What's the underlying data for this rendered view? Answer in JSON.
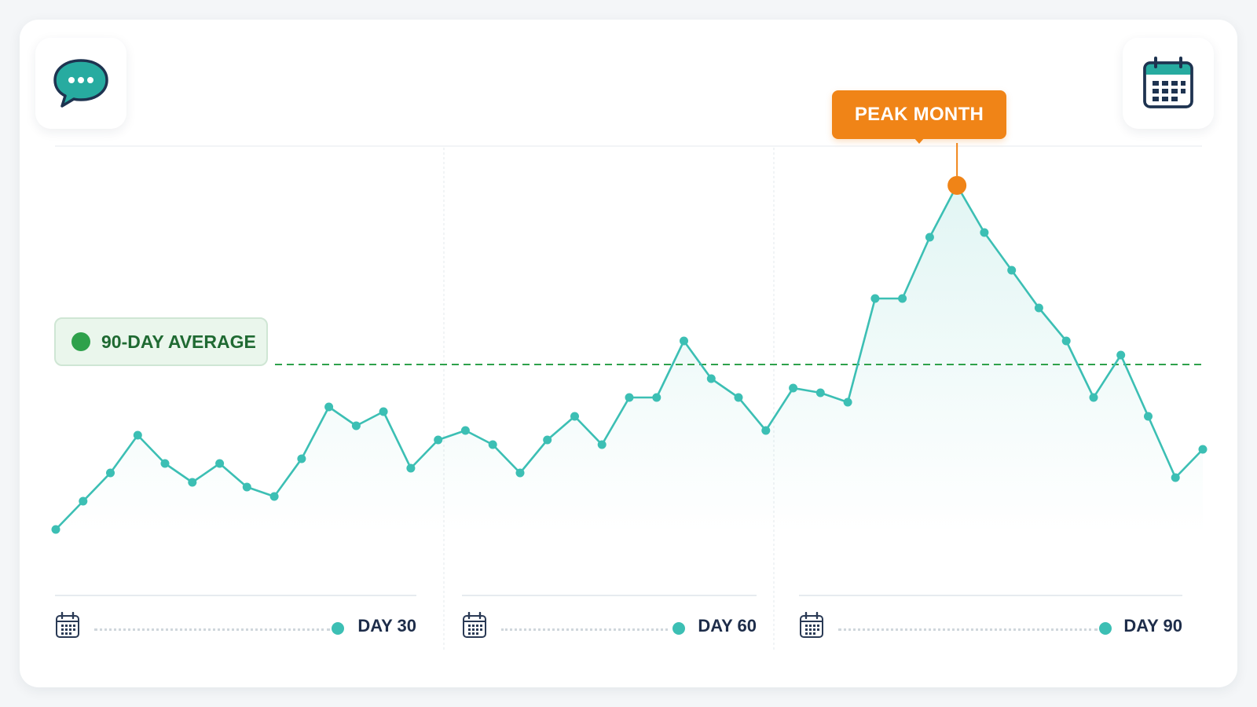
{
  "colors": {
    "line": "#3cbfb4",
    "area": "#3cbfb4",
    "average": "#2ea14b",
    "peak": "#f08417",
    "text_dark": "#1e2d4a"
  },
  "icons": {
    "top_left": "speech-bubble-icon",
    "top_right": "calendar-icon",
    "period": "calendar-icon"
  },
  "chart_data": {
    "type": "line",
    "title": "",
    "xlabel": "",
    "ylabel": "",
    "xlim": [
      1,
      90
    ],
    "ylim": [
      0,
      100
    ],
    "grid": false,
    "x_labels": [
      "DAY 30",
      "DAY 60",
      "DAY 90"
    ],
    "x_label_positions": [
      30,
      60,
      90
    ],
    "series": [
      {
        "values": [
          31,
          37,
          43,
          51,
          45,
          41,
          45,
          40,
          38,
          46,
          57,
          53,
          56,
          44,
          50,
          52,
          49,
          43,
          50,
          55,
          49,
          59,
          59,
          71,
          63,
          59,
          52,
          61,
          60,
          58,
          80,
          80,
          93,
          104,
          94,
          86,
          78,
          71,
          59,
          68,
          55,
          42,
          48
        ]
      }
    ],
    "average": {
      "label": "90-DAY AVERAGE",
      "value": 66
    },
    "peak": {
      "label": "PEAK MONTH",
      "index": 33
    }
  }
}
